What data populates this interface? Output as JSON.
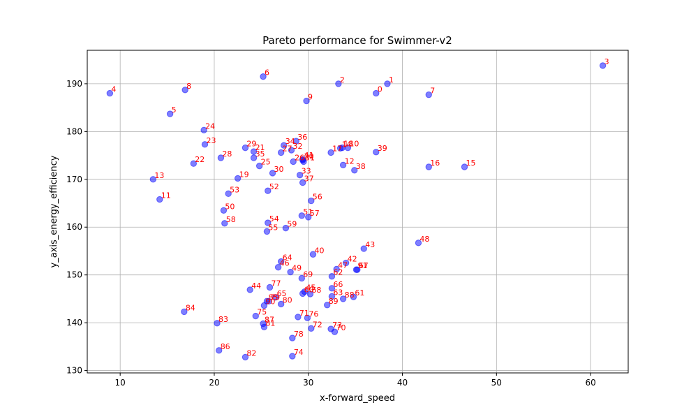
{
  "chart_data": {
    "type": "scatter",
    "title": "Pareto performance for Swimmer-v2",
    "xlabel": "x-forward_speed",
    "ylabel": "y_axis_energy_efficiency",
    "xlim": [
      6.5,
      64
    ],
    "ylim": [
      129.5,
      197
    ],
    "xticks": [
      10,
      20,
      30,
      40,
      50,
      60
    ],
    "yticks": [
      130,
      140,
      150,
      160,
      170,
      180,
      190
    ],
    "grid": true,
    "colors": {
      "point": "#0000ff",
      "label": "#ff0000"
    },
    "points": [
      {
        "label": "0",
        "x": 37.2,
        "y": 188.0
      },
      {
        "label": "1",
        "x": 38.4,
        "y": 190.0
      },
      {
        "label": "2",
        "x": 33.2,
        "y": 190.0
      },
      {
        "label": "3",
        "x": 61.3,
        "y": 193.8
      },
      {
        "label": "4",
        "x": 8.9,
        "y": 188.0
      },
      {
        "label": "5",
        "x": 15.3,
        "y": 183.7
      },
      {
        "label": "6",
        "x": 25.2,
        "y": 191.5
      },
      {
        "label": "7",
        "x": 42.8,
        "y": 187.7
      },
      {
        "label": "8",
        "x": 16.9,
        "y": 188.7
      },
      {
        "label": "9",
        "x": 29.8,
        "y": 186.4
      },
      {
        "label": "10",
        "x": 34.2,
        "y": 176.6
      },
      {
        "label": "11",
        "x": 14.2,
        "y": 165.8
      },
      {
        "label": "12",
        "x": 33.7,
        "y": 173.0
      },
      {
        "label": "13",
        "x": 13.5,
        "y": 170.0
      },
      {
        "label": "14",
        "x": 33.4,
        "y": 176.5
      },
      {
        "label": "15",
        "x": 46.6,
        "y": 172.6
      },
      {
        "label": "16",
        "x": 42.8,
        "y": 172.6
      },
      {
        "label": "17",
        "x": 32.4,
        "y": 175.6
      },
      {
        "label": "18",
        "x": 33.6,
        "y": 176.6
      },
      {
        "label": "19",
        "x": 22.5,
        "y": 170.2
      },
      {
        "label": "20",
        "x": 29.4,
        "y": 174.0
      },
      {
        "label": "21",
        "x": 24.2,
        "y": 175.8
      },
      {
        "label": "22",
        "x": 17.8,
        "y": 173.3
      },
      {
        "label": "23",
        "x": 19.0,
        "y": 177.3
      },
      {
        "label": "24",
        "x": 18.9,
        "y": 180.3
      },
      {
        "label": "25",
        "x": 24.8,
        "y": 172.8
      },
      {
        "label": "26",
        "x": 28.4,
        "y": 173.7
      },
      {
        "label": "27",
        "x": 27.1,
        "y": 175.6
      },
      {
        "label": "28",
        "x": 20.7,
        "y": 174.5
      },
      {
        "label": "29",
        "x": 23.3,
        "y": 176.6
      },
      {
        "label": "30",
        "x": 26.2,
        "y": 171.3
      },
      {
        "label": "31",
        "x": 29.5,
        "y": 173.7
      },
      {
        "label": "32",
        "x": 28.2,
        "y": 176.1
      },
      {
        "label": "33",
        "x": 29.1,
        "y": 170.9
      },
      {
        "label": "34",
        "x": 27.4,
        "y": 177.1
      },
      {
        "label": "35",
        "x": 24.2,
        "y": 174.5
      },
      {
        "label": "36",
        "x": 28.7,
        "y": 178.0
      },
      {
        "label": "37",
        "x": 29.4,
        "y": 169.3
      },
      {
        "label": "38",
        "x": 34.9,
        "y": 171.9
      },
      {
        "label": "39",
        "x": 37.2,
        "y": 175.7
      },
      {
        "label": "40",
        "x": 30.5,
        "y": 154.3
      },
      {
        "label": "41",
        "x": 29.4,
        "y": 174.2
      },
      {
        "label": "42",
        "x": 34.0,
        "y": 152.5
      },
      {
        "label": "43",
        "x": 35.9,
        "y": 155.5
      },
      {
        "label": "44",
        "x": 23.8,
        "y": 146.9
      },
      {
        "label": "45",
        "x": 29.6,
        "y": 146.5
      },
      {
        "label": "46",
        "x": 26.8,
        "y": 151.6
      },
      {
        "label": "47",
        "x": 33.0,
        "y": 151.2
      },
      {
        "label": "48",
        "x": 41.7,
        "y": 156.7
      },
      {
        "label": "49",
        "x": 28.1,
        "y": 150.6
      },
      {
        "label": "50",
        "x": 21.0,
        "y": 163.5
      },
      {
        "label": "51",
        "x": 29.3,
        "y": 162.4
      },
      {
        "label": "52",
        "x": 25.7,
        "y": 167.6
      },
      {
        "label": "53",
        "x": 21.5,
        "y": 167.0
      },
      {
        "label": "54",
        "x": 25.7,
        "y": 160.9
      },
      {
        "label": "55",
        "x": 25.6,
        "y": 159.1
      },
      {
        "label": "56",
        "x": 30.3,
        "y": 165.5
      },
      {
        "label": "57",
        "x": 30.0,
        "y": 162.1
      },
      {
        "label": "58",
        "x": 21.1,
        "y": 160.8
      },
      {
        "label": "59",
        "x": 27.6,
        "y": 159.8
      },
      {
        "label": "60",
        "x": 29.4,
        "y": 146.1
      },
      {
        "label": "61",
        "x": 34.8,
        "y": 145.4
      },
      {
        "label": "62",
        "x": 32.5,
        "y": 149.7
      },
      {
        "label": "63",
        "x": 32.5,
        "y": 145.5
      },
      {
        "label": "64",
        "x": 27.1,
        "y": 152.8
      },
      {
        "label": "65",
        "x": 26.5,
        "y": 145.3
      },
      {
        "label": "66",
        "x": 32.5,
        "y": 147.2
      },
      {
        "label": "67",
        "x": 35.2,
        "y": 151.1
      },
      {
        "label": "68",
        "x": 30.2,
        "y": 146.0
      },
      {
        "label": "69",
        "x": 29.3,
        "y": 149.3
      },
      {
        "label": "70",
        "x": 32.8,
        "y": 138.1
      },
      {
        "label": "71",
        "x": 28.9,
        "y": 141.2
      },
      {
        "label": "72",
        "x": 30.3,
        "y": 138.8
      },
      {
        "label": "73",
        "x": 32.4,
        "y": 138.7
      },
      {
        "label": "74",
        "x": 28.3,
        "y": 133.0
      },
      {
        "label": "75",
        "x": 24.4,
        "y": 141.4
      },
      {
        "label": "76",
        "x": 29.9,
        "y": 141.0
      },
      {
        "label": "77",
        "x": 25.9,
        "y": 147.4
      },
      {
        "label": "78",
        "x": 28.3,
        "y": 136.8
      },
      {
        "label": "79",
        "x": 25.8,
        "y": 144.5
      },
      {
        "label": "80",
        "x": 27.1,
        "y": 143.9
      },
      {
        "label": "81",
        "x": 25.3,
        "y": 139.1
      },
      {
        "label": "82",
        "x": 23.3,
        "y": 132.8
      },
      {
        "label": "83",
        "x": 20.3,
        "y": 139.9
      },
      {
        "label": "84",
        "x": 16.8,
        "y": 142.3
      },
      {
        "label": "85",
        "x": 25.6,
        "y": 144.5
      },
      {
        "label": "86",
        "x": 20.5,
        "y": 134.2
      },
      {
        "label": "87",
        "x": 25.2,
        "y": 139.8
      },
      {
        "label": "88",
        "x": 33.7,
        "y": 145.0
      },
      {
        "label": "89",
        "x": 32.0,
        "y": 143.7
      },
      {
        "label": "90",
        "x": 25.3,
        "y": 143.6
      },
      {
        "label": "91",
        "x": 35.1,
        "y": 151.1
      }
    ]
  }
}
